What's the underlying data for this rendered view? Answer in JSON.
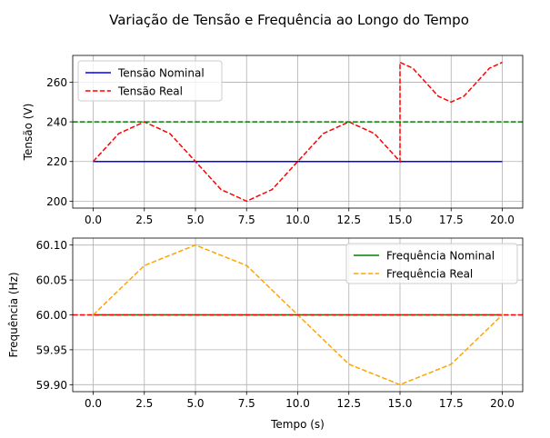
{
  "chart_data": [
    {
      "type": "line",
      "suptitle": "Variação de Tensão e Frequência ao Longo do Tempo",
      "xlabel": "",
      "ylabel": "Tensão (V)",
      "xlim": [
        -1,
        21
      ],
      "ylim": [
        196.5,
        273.5
      ],
      "xticks": [
        0.0,
        2.5,
        5.0,
        7.5,
        10.0,
        12.5,
        15.0,
        17.5,
        20.0
      ],
      "xtick_labels": [
        "0.0",
        "2.5",
        "5.0",
        "7.5",
        "10.0",
        "12.5",
        "15.0",
        "17.5",
        "20.0"
      ],
      "yticks": [
        200,
        220,
        240,
        260
      ],
      "ytick_labels": [
        "200",
        "220",
        "240",
        "260"
      ],
      "grid": true,
      "legend": "upper-left",
      "series": [
        {
          "name": "Tensão Nominal",
          "color": "#0000ff",
          "style": "solid",
          "x": [
            0,
            20
          ],
          "y": [
            220,
            220
          ]
        },
        {
          "name": "Tensão Real",
          "color": "#ff0000",
          "style": "dashed",
          "x": [
            0,
            1.25,
            2.5,
            3.75,
            5,
            6.25,
            7.5,
            8.75,
            10,
            11.25,
            12.5,
            13.75,
            15,
            15,
            15.625,
            16.25,
            16.875,
            17.5,
            18.125,
            18.75,
            19.375,
            20
          ],
          "y": [
            220,
            234.1,
            240,
            234.1,
            220,
            205.9,
            200,
            205.9,
            220,
            234.1,
            240,
            234.1,
            220,
            270,
            267.1,
            260,
            252.9,
            250,
            252.9,
            260,
            267.1,
            270
          ]
        }
      ],
      "hlines": [
        {
          "y": 240,
          "color": "#008000",
          "style": "dashed"
        }
      ]
    },
    {
      "type": "line",
      "xlabel": "Tempo (s)",
      "ylabel": "Frequência (Hz)",
      "xlim": [
        -1,
        21
      ],
      "ylim": [
        59.89,
        60.11
      ],
      "xticks": [
        0.0,
        2.5,
        5.0,
        7.5,
        10.0,
        12.5,
        15.0,
        17.5,
        20.0
      ],
      "xtick_labels": [
        "0.0",
        "2.5",
        "5.0",
        "7.5",
        "10.0",
        "12.5",
        "15.0",
        "17.5",
        "20.0"
      ],
      "yticks": [
        59.9,
        59.95,
        60.0,
        60.05,
        60.1
      ],
      "ytick_labels": [
        "59.90",
        "59.95",
        "60.00",
        "60.05",
        "60.10"
      ],
      "grid": true,
      "legend": "upper-right",
      "series": [
        {
          "name": "Frequência Nominal",
          "color": "#008000",
          "style": "solid",
          "x": [
            0,
            20
          ],
          "y": [
            60,
            60
          ]
        },
        {
          "name": "Frequência Real",
          "color": "#ffa500",
          "style": "dashed",
          "x": [
            0,
            2.5,
            5,
            7.5,
            10,
            12.5,
            15,
            17.5,
            20
          ],
          "y": [
            60,
            60.0707,
            60.1,
            60.0707,
            60,
            59.9293,
            59.9,
            59.9293,
            60
          ]
        }
      ],
      "hlines": [
        {
          "y": 60,
          "color": "#ff0000",
          "style": "dashed"
        }
      ]
    }
  ]
}
